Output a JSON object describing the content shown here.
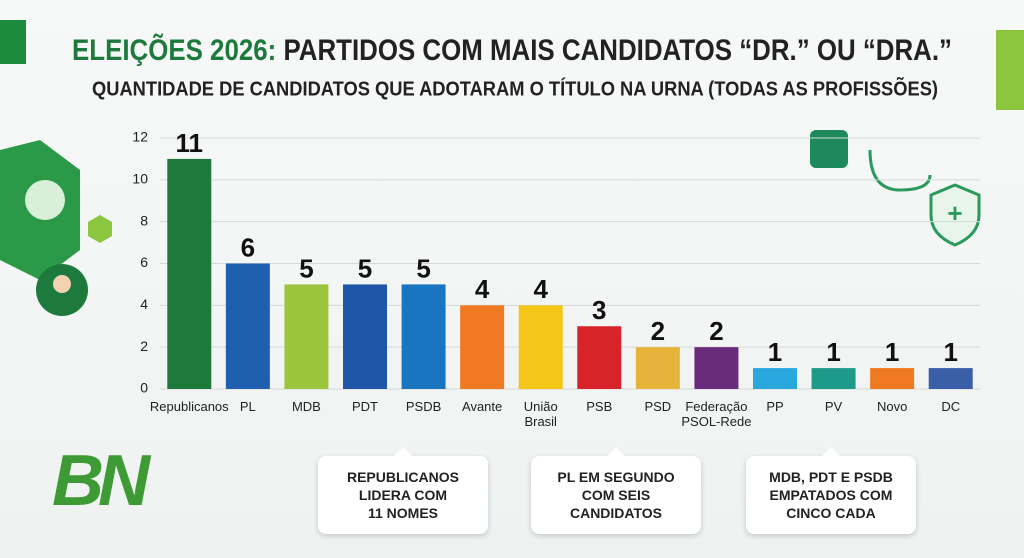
{
  "chart_data": {
    "type": "bar",
    "title_highlight": "ELEIÇÕES 2026:",
    "title": "PARTIDOS COM MAIS CANDIDATOS “DR.” OU “DRA.”",
    "subtitle": "QUANTIDADE DE CANDIDATOS QUE ADOTARAM O TÍTULO NA URNA (TODAS AS PROFISSÕES)",
    "categories": [
      "Republicanos",
      "PL",
      "MDB",
      "PDT",
      "PSDB",
      "Avante",
      "União\nBrasil",
      "PSB",
      "PSD",
      "Federação\nPSOL-Rede",
      "PP",
      "PV",
      "Novo",
      "DC"
    ],
    "values": [
      11,
      6,
      5,
      5,
      5,
      4,
      4,
      3,
      2,
      2,
      1,
      1,
      1,
      1
    ],
    "colors": [
      "#1e7a3c",
      "#1f5fb0",
      "#9bc53d",
      "#1f56a8",
      "#1a75c0",
      "#f07a22",
      "#f5c518",
      "#d8232a",
      "#e6b43a",
      "#6b2b7d",
      "#29a8dd",
      "#1e9a8a",
      "#f07a22",
      "#3a5fa8"
    ],
    "ylim": [
      0,
      12
    ],
    "yticks": [
      0,
      2,
      4,
      6,
      8,
      10,
      12
    ],
    "grid": true,
    "annotations": [
      "REPUBLICANOS\nLIDERA COM\n11 NOMES",
      "PL EM SEGUNDO\nCOM SEIS\nCANDIDATOS",
      "MDB, PDT E PSDB\nEMPATADOS COM\nCINCO CADA"
    ],
    "logo": "BN"
  }
}
